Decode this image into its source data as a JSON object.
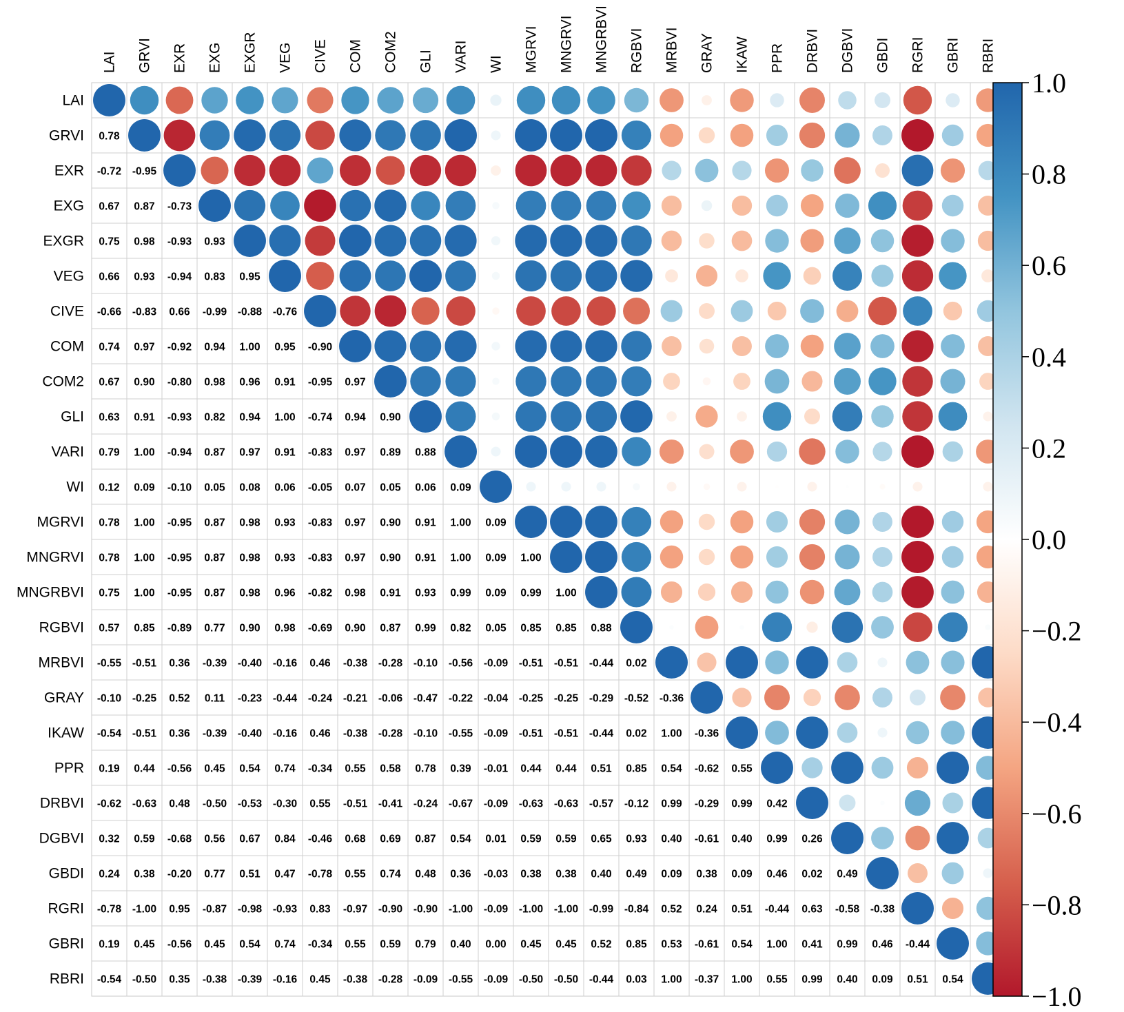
{
  "chart_data": {
    "type": "heatmap",
    "title": "",
    "variables": [
      "LAI",
      "GRVI",
      "EXR",
      "EXG",
      "EXGR",
      "VEG",
      "CIVE",
      "COM",
      "COM2",
      "GLI",
      "VARI",
      "WI",
      "MGRVI",
      "MNGRVI",
      "MNGRBVI",
      "RGBVI",
      "MRBVI",
      "GRAY",
      "IKAW",
      "PPR",
      "DRBVI",
      "DGBVI",
      "GBDI",
      "RGRI",
      "GBRI",
      "RBRI"
    ],
    "lower_triangle_labels": [
      [],
      [
        "0.78"
      ],
      [
        "-0.72",
        "-0.95"
      ],
      [
        "0.67",
        "0.87",
        "-0.73"
      ],
      [
        "0.75",
        "0.98",
        "-0.93",
        "0.93"
      ],
      [
        "0.66",
        "0.93",
        "-0.94",
        "0.83",
        "0.95"
      ],
      [
        "-0.66",
        "-0.83",
        "0.66",
        "-0.99",
        "-0.88",
        "-0.76"
      ],
      [
        "0.74",
        "0.97",
        "-0.92",
        "0.94",
        "1.00",
        "0.95",
        "-0.90"
      ],
      [
        "0.67",
        "0.90",
        "-0.80",
        "0.98",
        "0.96",
        "0.91",
        "-0.95",
        "0.97"
      ],
      [
        "0.63",
        "0.91",
        "-0.93",
        "0.82",
        "0.94",
        "1.00",
        "-0.74",
        "0.94",
        "0.90"
      ],
      [
        "0.79",
        "1.00",
        "-0.94",
        "0.87",
        "0.97",
        "0.91",
        "-0.83",
        "0.97",
        "0.89",
        "0.88"
      ],
      [
        "0.12",
        "0.09",
        "-0.10",
        "0.05",
        "0.08",
        "0.06",
        "-0.05",
        "0.07",
        "0.05",
        "0.06",
        "0.09"
      ],
      [
        "0.78",
        "1.00",
        "-0.95",
        "0.87",
        "0.98",
        "0.93",
        "-0.83",
        "0.97",
        "0.90",
        "0.91",
        "1.00",
        "0.09"
      ],
      [
        "0.78",
        "1.00",
        "-0.95",
        "0.87",
        "0.98",
        "0.93",
        "-0.83",
        "0.97",
        "0.90",
        "0.91",
        "1.00",
        "0.09",
        "1.00"
      ],
      [
        "0.75",
        "1.00",
        "-0.95",
        "0.87",
        "0.98",
        "0.96",
        "-0.82",
        "0.98",
        "0.91",
        "0.93",
        "0.99",
        "0.09",
        "0.99",
        "1.00"
      ],
      [
        "0.57",
        "0.85",
        "-0.89",
        "0.77",
        "0.90",
        "0.98",
        "-0.69",
        "0.90",
        "0.87",
        "0.99",
        "0.82",
        "0.05",
        "0.85",
        "0.85",
        "0.88"
      ],
      [
        "-0.55",
        "-0.51",
        "0.36",
        "-0.39",
        "-0.40",
        "-0.16",
        "0.46",
        "-0.38",
        "-0.28",
        "-0.10",
        "-0.56",
        "-0.09",
        "-0.51",
        "-0.51",
        "-0.44",
        "0.02"
      ],
      [
        "-0.10",
        "-0.25",
        "0.52",
        "0.11",
        "-0.23",
        "-0.44",
        "-0.24",
        "-0.21",
        "-0.06",
        "-0.47",
        "-0.22",
        "-0.04",
        "-0.25",
        "-0.25",
        "-0.29",
        "-0.52",
        "-0.36"
      ],
      [
        "-0.54",
        "-0.51",
        "0.36",
        "-0.39",
        "-0.40",
        "-0.16",
        "0.46",
        "-0.38",
        "-0.28",
        "-0.10",
        "-0.55",
        "-0.09",
        "-0.51",
        "-0.51",
        "-0.44",
        "0.02",
        "1.00",
        "-0.36"
      ],
      [
        "0.19",
        "0.44",
        "-0.56",
        "0.45",
        "0.54",
        "0.74",
        "-0.34",
        "0.55",
        "0.58",
        "0.78",
        "0.39",
        "-0.01",
        "0.44",
        "0.44",
        "0.51",
        "0.85",
        "0.54",
        "-0.62",
        "0.55"
      ],
      [
        "-0.62",
        "-0.63",
        "0.48",
        "-0.50",
        "-0.53",
        "-0.30",
        "0.55",
        "-0.51",
        "-0.41",
        "-0.24",
        "-0.67",
        "-0.09",
        "-0.63",
        "-0.63",
        "-0.57",
        "-0.12",
        "0.99",
        "-0.29",
        "0.99",
        "0.42"
      ],
      [
        "0.32",
        "0.59",
        "-0.68",
        "0.56",
        "0.67",
        "0.84",
        "-0.46",
        "0.68",
        "0.69",
        "0.87",
        "0.54",
        "0.01",
        "0.59",
        "0.59",
        "0.65",
        "0.93",
        "0.40",
        "-0.61",
        "0.40",
        "0.99",
        "0.26"
      ],
      [
        "0.24",
        "0.38",
        "-0.20",
        "0.77",
        "0.51",
        "0.47",
        "-0.78",
        "0.55",
        "0.74",
        "0.48",
        "0.36",
        "-0.03",
        "0.38",
        "0.38",
        "0.40",
        "0.49",
        "0.09",
        "0.38",
        "0.09",
        "0.46",
        "0.02",
        "0.49"
      ],
      [
        "-0.78",
        "-1.00",
        "0.95",
        "-0.87",
        "-0.98",
        "-0.93",
        "0.83",
        "-0.97",
        "-0.90",
        "-0.90",
        "-1.00",
        "-0.09",
        "-1.00",
        "-1.00",
        "-0.99",
        "-0.84",
        "0.52",
        "0.24",
        "0.51",
        "-0.44",
        "0.63",
        "-0.58",
        "-0.38"
      ],
      [
        "0.19",
        "0.45",
        "-0.56",
        "0.45",
        "0.54",
        "0.74",
        "-0.34",
        "0.55",
        "0.59",
        "0.79",
        "0.40",
        "0.00",
        "0.45",
        "0.45",
        "0.52",
        "0.85",
        "0.53",
        "-0.61",
        "0.54",
        "1.00",
        "0.41",
        "0.99",
        "0.46",
        "-0.44"
      ],
      [
        "-0.54",
        "-0.50",
        "0.35",
        "-0.38",
        "-0.39",
        "-0.16",
        "0.45",
        "-0.38",
        "-0.28",
        "-0.09",
        "-0.55",
        "-0.09",
        "-0.50",
        "-0.50",
        "-0.44",
        "0.03",
        "1.00",
        "-0.37",
        "1.00",
        "0.55",
        "0.99",
        "0.40",
        "0.09",
        "0.51",
        "0.54"
      ]
    ],
    "upper_triangle": "circles, size and color by correlation",
    "colorbar": {
      "ticks": [
        "1.0",
        "0.8",
        "0.6",
        "0.4",
        "0.2",
        "0.0",
        "−0.2",
        "−0.4",
        "−0.6",
        "−0.8",
        "−1.0"
      ],
      "range": [
        -1,
        1
      ],
      "colors": [
        "#B2182B",
        "#D6604D",
        "#F4A582",
        "#FDDBC7",
        "#FFFFFF",
        "#D1E5F0",
        "#92C5DE",
        "#4393C3",
        "#2166AC"
      ]
    }
  }
}
